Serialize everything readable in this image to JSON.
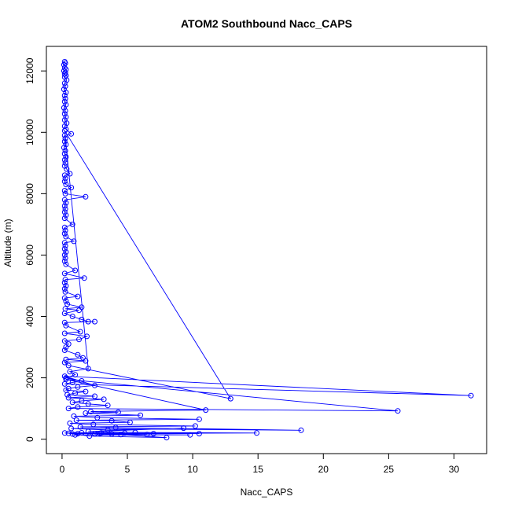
{
  "chart_data": {
    "type": "line",
    "title": "ATOM2 Southbound Nacc_CAPS",
    "xlabel": "Nacc_CAPS",
    "ylabel": "Altitude (m)",
    "xlim": [
      -1.2,
      32.5
    ],
    "ylim": [
      -470,
      12800
    ],
    "xticks": [
      0,
      5,
      10,
      15,
      20,
      25,
      30
    ],
    "yticks": [
      0,
      2000,
      4000,
      6000,
      8000,
      10000,
      12000
    ],
    "grid": false,
    "markers": "open-circle",
    "series_color": "#0000ff",
    "series": [
      {
        "values": [
          [
            0.2,
            12300
          ],
          [
            0.25,
            12250
          ],
          [
            0.15,
            12200
          ],
          [
            0.2,
            12100
          ],
          [
            0.3,
            12050
          ],
          [
            0.15,
            12000
          ],
          [
            0.25,
            11950
          ],
          [
            0.2,
            11900
          ],
          [
            0.3,
            11850
          ],
          [
            0.2,
            11800
          ],
          [
            0.35,
            11700
          ],
          [
            0.2,
            11600
          ],
          [
            0.25,
            11500
          ],
          [
            0.15,
            11400
          ],
          [
            0.3,
            11300
          ],
          [
            0.2,
            11200
          ],
          [
            0.25,
            11100
          ],
          [
            0.2,
            11000
          ],
          [
            0.3,
            10900
          ],
          [
            0.15,
            10800
          ],
          [
            0.25,
            10700
          ],
          [
            0.2,
            10600
          ],
          [
            0.3,
            10500
          ],
          [
            0.2,
            10400
          ],
          [
            0.35,
            10300
          ],
          [
            0.2,
            10200
          ],
          [
            0.3,
            10100
          ],
          [
            0.7,
            9950
          ],
          [
            0.2,
            9900
          ],
          [
            0.25,
            9800
          ],
          [
            0.2,
            9700
          ],
          [
            0.3,
            9600
          ],
          [
            0.15,
            9500
          ],
          [
            0.25,
            9400
          ],
          [
            0.2,
            9300
          ],
          [
            0.3,
            9200
          ],
          [
            0.2,
            9100
          ],
          [
            0.25,
            9000
          ],
          [
            0.2,
            8900
          ],
          [
            0.35,
            8800
          ],
          [
            0.6,
            8650
          ],
          [
            0.2,
            8600
          ],
          [
            0.25,
            8500
          ],
          [
            0.2,
            8400
          ],
          [
            0.3,
            8300
          ],
          [
            0.7,
            8200
          ],
          [
            0.2,
            8100
          ],
          [
            0.25,
            8000
          ],
          [
            1.8,
            7900
          ],
          [
            0.2,
            7800
          ],
          [
            0.3,
            7700
          ],
          [
            0.2,
            7600
          ],
          [
            0.25,
            7500
          ],
          [
            0.2,
            7400
          ],
          [
            0.3,
            7300
          ],
          [
            0.2,
            7200
          ],
          [
            0.8,
            7000
          ],
          [
            0.2,
            6900
          ],
          [
            0.25,
            6800
          ],
          [
            0.2,
            6700
          ],
          [
            0.3,
            6600
          ],
          [
            0.9,
            6450
          ],
          [
            0.2,
            6400
          ],
          [
            0.25,
            6300
          ],
          [
            0.2,
            6200
          ],
          [
            0.3,
            6100
          ],
          [
            0.2,
            6000
          ],
          [
            0.25,
            5900
          ],
          [
            0.2,
            5800
          ],
          [
            0.3,
            5700
          ],
          [
            1.0,
            5500
          ],
          [
            0.2,
            5400
          ],
          [
            1.7,
            5250
          ],
          [
            0.25,
            5200
          ],
          [
            0.2,
            5100
          ],
          [
            0.3,
            5000
          ],
          [
            0.2,
            4900
          ],
          [
            0.25,
            4800
          ],
          [
            1.2,
            4650
          ],
          [
            0.2,
            4600
          ],
          [
            0.3,
            4500
          ],
          [
            0.4,
            4400
          ],
          [
            1.5,
            4300
          ],
          [
            0.25,
            4250
          ],
          [
            1.3,
            4200
          ],
          [
            0.2,
            4100
          ],
          [
            0.8,
            4000
          ],
          [
            1.5,
            3900
          ],
          [
            2.0,
            3830
          ],
          [
            2.5,
            3830
          ],
          [
            0.2,
            3800
          ],
          [
            0.3,
            3700
          ],
          [
            1.4,
            3500
          ],
          [
            0.2,
            3450
          ],
          [
            1.9,
            3350
          ],
          [
            1.3,
            3250
          ],
          [
            0.2,
            3200
          ],
          [
            0.5,
            3100
          ],
          [
            0.3,
            3000
          ],
          [
            0.2,
            2900
          ],
          [
            1.2,
            2750
          ],
          [
            1.6,
            2650
          ],
          [
            0.3,
            2600
          ],
          [
            1.8,
            2550
          ],
          [
            0.2,
            2500
          ],
          [
            0.5,
            2400
          ],
          [
            12.9,
            1320
          ],
          [
            0.2,
            10050
          ],
          [
            2.0,
            2300
          ],
          [
            0.6,
            2200
          ],
          [
            1.0,
            2100
          ],
          [
            0.3,
            2000
          ],
          [
            1.5,
            1900
          ],
          [
            0.8,
            1850
          ],
          [
            0.2,
            1800
          ],
          [
            31.3,
            1420
          ],
          [
            0.2,
            2050
          ],
          [
            2.5,
            1750
          ],
          [
            1.2,
            1700
          ],
          [
            0.5,
            1650
          ],
          [
            0.3,
            1600
          ],
          [
            1.8,
            1550
          ],
          [
            1.0,
            1500
          ],
          [
            0.4,
            1450
          ],
          [
            2.5,
            1400
          ],
          [
            0.5,
            1350
          ],
          [
            3.2,
            1300
          ],
          [
            1.5,
            1250
          ],
          [
            0.8,
            1200
          ],
          [
            2.0,
            1150
          ],
          [
            3.5,
            1100
          ],
          [
            1.2,
            1050
          ],
          [
            0.5,
            1000
          ],
          [
            25.7,
            920
          ],
          [
            0.3,
            1950
          ],
          [
            11.0,
            950
          ],
          [
            2.2,
            900
          ],
          [
            4.3,
            880
          ],
          [
            1.8,
            850
          ],
          [
            6.0,
            780
          ],
          [
            0.9,
            750
          ],
          [
            2.7,
            700
          ],
          [
            10.5,
            650
          ],
          [
            1.1,
            620
          ],
          [
            3.8,
            600
          ],
          [
            5.2,
            550
          ],
          [
            0.6,
            520
          ],
          [
            2.4,
            480
          ],
          [
            10.2,
            430
          ],
          [
            1.4,
            400
          ],
          [
            4.1,
            380
          ],
          [
            18.3,
            290
          ],
          [
            0.7,
            350
          ],
          [
            3.5,
            300
          ],
          [
            9.3,
            360
          ],
          [
            2.0,
            250
          ],
          [
            5.6,
            220
          ],
          [
            14.9,
            200
          ],
          [
            1.2,
            180
          ],
          [
            7.0,
            180
          ],
          [
            3.0,
            200
          ],
          [
            10.5,
            180
          ],
          [
            2.5,
            170
          ],
          [
            6.5,
            150
          ],
          [
            1.0,
            140
          ],
          [
            9.8,
            140
          ],
          [
            4.5,
            150
          ],
          [
            8.0,
            50
          ],
          [
            2.1,
            100
          ],
          [
            0.5,
            190
          ],
          [
            3.8,
            170
          ],
          [
            0.2,
            200
          ],
          [
            1.5,
            210
          ],
          [
            4.8,
            200
          ],
          [
            2.9,
            190
          ],
          [
            0.8,
            170
          ]
        ]
      }
    ]
  }
}
